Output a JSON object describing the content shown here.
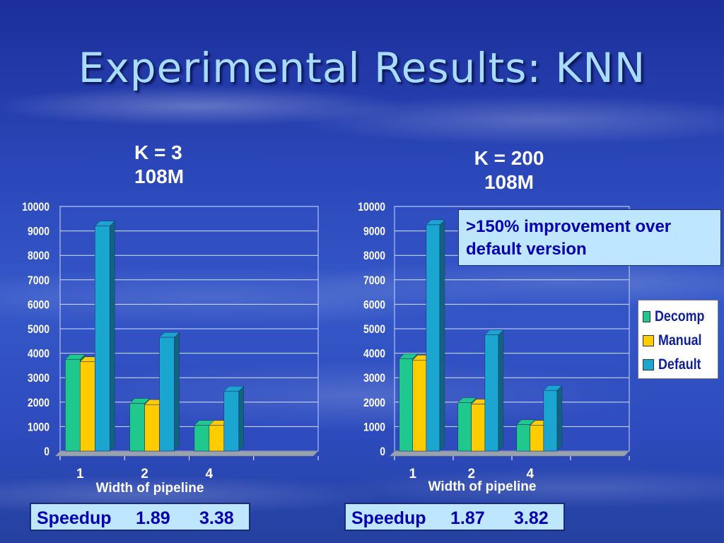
{
  "slide": {
    "title": "Experimental Results: KNN",
    "callout": ">150% improvement over default version"
  },
  "colors": {
    "decomp": "#1fc88c",
    "manual": "#ffcc00",
    "default": "#1aa6d0"
  },
  "legend": [
    {
      "name": "Decomp",
      "color": "#1fc88c"
    },
    {
      "name": "Manual",
      "color": "#ffcc00"
    },
    {
      "name": "Default",
      "color": "#1aa6d0"
    }
  ],
  "chart_data": [
    {
      "type": "bar",
      "title_lines": [
        "K = 3",
        "108M"
      ],
      "xlabel": "Width of pipeline",
      "categories": [
        "1",
        "2",
        "4"
      ],
      "series": [
        {
          "name": "Decomp",
          "values": [
            3750,
            1950,
            1050
          ]
        },
        {
          "name": "Manual",
          "values": [
            3650,
            1900,
            1050
          ]
        },
        {
          "name": "Default",
          "values": [
            9200,
            4650,
            2450
          ]
        }
      ],
      "ylim": [
        0,
        10000
      ],
      "yticks": [
        "0",
        "1000",
        "2000",
        "3000",
        "4000",
        "5000",
        "6000",
        "7000",
        "8000",
        "9000",
        "10000"
      ],
      "grid": true,
      "speedup": {
        "label": "Speedup",
        "values": [
          "1.89",
          "3.38"
        ]
      }
    },
    {
      "type": "bar",
      "title_lines": [
        "K = 200",
        "108M"
      ],
      "xlabel": "Width of pipeline",
      "categories": [
        "1",
        "2",
        "4"
      ],
      "series": [
        {
          "name": "Decomp",
          "values": [
            3780,
            1980,
            1080
          ]
        },
        {
          "name": "Manual",
          "values": [
            3720,
            1920,
            1050
          ]
        },
        {
          "name": "Default",
          "values": [
            9250,
            4750,
            2480
          ]
        }
      ],
      "ylim": [
        0,
        10000
      ],
      "yticks": [
        "0",
        "1000",
        "2000",
        "3000",
        "4000",
        "5000",
        "6000",
        "7000",
        "8000",
        "9000",
        "10000"
      ],
      "grid": true,
      "legend_position": "right",
      "speedup": {
        "label": "Speedup",
        "values": [
          "1.87",
          "3.82"
        ]
      }
    }
  ]
}
